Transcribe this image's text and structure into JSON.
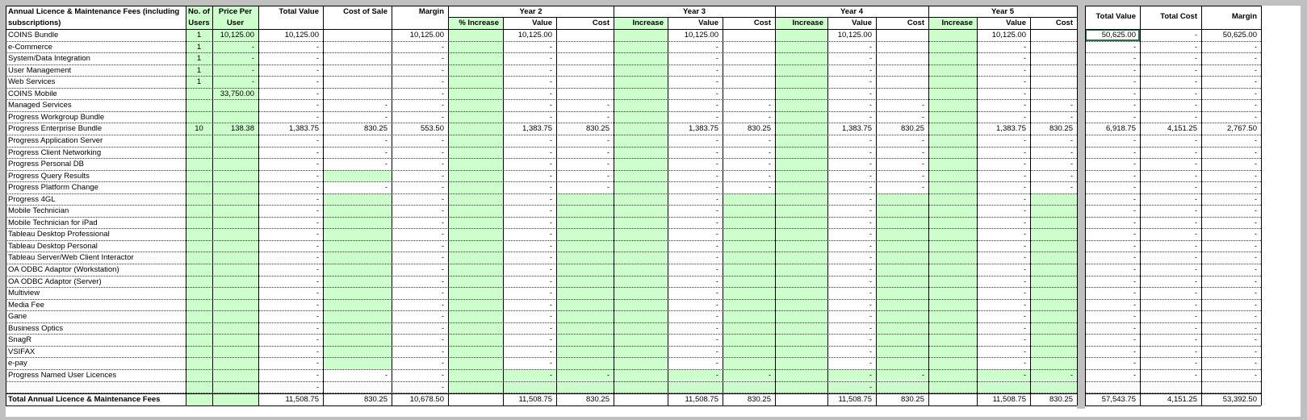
{
  "headers": {
    "title_line1": "Annual Licence & Maintenance Fees (including",
    "title_line2": "subscriptions)",
    "users_line1": "No. of",
    "users_line2": "Users",
    "ppu_line1": "Price Per",
    "ppu_line2": "User",
    "total_value": "Total Value",
    "cost_of_sale": "Cost of Sale",
    "margin": "Margin",
    "year2": "Year 2",
    "year3": "Year 3",
    "year4": "Year 4",
    "year5": "Year 5",
    "pct_increase": "% Increase",
    "increase": "Increase",
    "value": "Value",
    "cost": "Cost",
    "sum_total_value": "Total Value",
    "sum_total_cost": "Total Cost",
    "sum_margin": "Margin"
  },
  "rows": [
    {
      "name": "COINS Bundle",
      "users": "1",
      "ppu": "10,125.00",
      "tv": "10,125.00",
      "cos": "",
      "margin": "10,125.00",
      "y2v": "10,125.00",
      "y2c": "",
      "y3v": "10,125.00",
      "y3c": "",
      "y4v": "10,125.00",
      "y4c": "",
      "y5v": "10,125.00",
      "y5c": "",
      "stv": "50,625.00",
      "stc": "-",
      "sm": "50,625.00"
    },
    {
      "name": "e-Commerce",
      "users": "1",
      "ppu": "-",
      "tv": "-",
      "cos": "",
      "margin": "-",
      "y2v": "-",
      "y2c": "",
      "y3v": "-",
      "y3c": "",
      "y4v": "-",
      "y4c": "",
      "y5v": "-",
      "y5c": "",
      "stv": "-",
      "stc": "-",
      "sm": "-"
    },
    {
      "name": "System/Data Integration",
      "users": "1",
      "ppu": "-",
      "tv": "-",
      "cos": "",
      "margin": "-",
      "y2v": "-",
      "y2c": "",
      "y3v": "-",
      "y3c": "",
      "y4v": "-",
      "y4c": "",
      "y5v": "-",
      "y5c": "",
      "stv": "-",
      "stc": "-",
      "sm": "-"
    },
    {
      "name": "User Management",
      "users": "1",
      "ppu": "-",
      "tv": "-",
      "cos": "",
      "margin": "-",
      "y2v": "-",
      "y2c": "",
      "y3v": "-",
      "y3c": "",
      "y4v": "-",
      "y4c": "",
      "y5v": "-",
      "y5c": "",
      "stv": "-",
      "stc": "-",
      "sm": "-"
    },
    {
      "name": "Web Services",
      "users": "1",
      "ppu": "-",
      "tv": "-",
      "cos": "",
      "margin": "-",
      "y2v": "-",
      "y2c": "",
      "y3v": "-",
      "y3c": "",
      "y4v": "-",
      "y4c": "",
      "y5v": "-",
      "y5c": "",
      "stv": "-",
      "stc": "-",
      "sm": "-"
    },
    {
      "name": "COINS Mobile",
      "users": "",
      "ppu": "33,750.00",
      "tv": "-",
      "cos": "",
      "margin": "-",
      "y2v": "-",
      "y2c": "",
      "y3v": "-",
      "y3c": "",
      "y4v": "-",
      "y4c": "",
      "y5v": "-",
      "y5c": "",
      "stv": "-",
      "stc": "-",
      "sm": "-"
    },
    {
      "name": "Managed Services",
      "users": "",
      "ppu": "",
      "tv": "-",
      "cos": "-",
      "margin": "-",
      "y2v": "-",
      "y2c": "-",
      "y3v": "-",
      "y3c": "-",
      "y4v": "-",
      "y4c": "-",
      "y5v": "-",
      "y5c": "-",
      "stv": "-",
      "stc": "-",
      "sm": "-"
    },
    {
      "name": "Progress Workgroup Bundle",
      "users": "",
      "ppu": "",
      "tv": "-",
      "cos": "-",
      "margin": "-",
      "y2v": "-",
      "y2c": "-",
      "y3v": "-",
      "y3c": "-",
      "y4v": "-",
      "y4c": "-",
      "y5v": "-",
      "y5c": "-",
      "stv": "-",
      "stc": "-",
      "sm": "-"
    },
    {
      "name": "Progress Enterprise Bundle",
      "users": "10",
      "ppu": "138.38",
      "tv": "1,383.75",
      "cos": "830.25",
      "margin": "553.50",
      "y2v": "1,383.75",
      "y2c": "830.25",
      "y3v": "1,383.75",
      "y3c": "830.25",
      "y4v": "1,383.75",
      "y4c": "830.25",
      "y5v": "1,383.75",
      "y5c": "830.25",
      "stv": "6,918.75",
      "stc": "4,151.25",
      "sm": "2,767.50"
    },
    {
      "name": "Progress Application Server",
      "users": "",
      "ppu": "",
      "tv": "-",
      "cos": "-",
      "margin": "-",
      "y2v": "-",
      "y2c": "-",
      "y3v": "-",
      "y3c": "-",
      "y4v": "-",
      "y4c": "-",
      "y5v": "-",
      "y5c": "-",
      "stv": "-",
      "stc": "-",
      "sm": "-"
    },
    {
      "name": "Progress Client Networking",
      "users": "",
      "ppu": "",
      "tv": "-",
      "cos": "-",
      "margin": "-",
      "y2v": "-",
      "y2c": "-",
      "y3v": "-",
      "y3c": "-",
      "y4v": "-",
      "y4c": "-",
      "y5v": "-",
      "y5c": "-",
      "stv": "-",
      "stc": "-",
      "sm": "-"
    },
    {
      "name": "Progress Personal DB",
      "users": "",
      "ppu": "",
      "tv": "-",
      "cos": "-",
      "margin": "-",
      "y2v": "-",
      "y2c": "-",
      "y3v": "-",
      "y3c": "-",
      "y4v": "-",
      "y4c": "-",
      "y5v": "-",
      "y5c": "-",
      "stv": "-",
      "stc": "-",
      "sm": "-"
    },
    {
      "name": "Progress Query Results",
      "users": "",
      "ppu": "",
      "tv": "-",
      "cos": "",
      "margin": "-",
      "y2v": "-",
      "y2c": "-",
      "y3v": "-",
      "y3c": "-",
      "y4v": "-",
      "y4c": "-",
      "y5v": "-",
      "y5c": "-",
      "stv": "-",
      "stc": "-",
      "sm": "-"
    },
    {
      "name": "Progress Platform Change",
      "users": "",
      "ppu": "",
      "tv": "-",
      "cos": "-",
      "margin": "-",
      "y2v": "-",
      "y2c": "-",
      "y3v": "-",
      "y3c": "-",
      "y4v": "-",
      "y4c": "-",
      "y5v": "-",
      "y5c": "-",
      "stv": "-",
      "stc": "-",
      "sm": "-"
    },
    {
      "name": "Progress 4GL",
      "users": "",
      "ppu": "",
      "tv": "-",
      "cos": "",
      "margin": "-",
      "y2v": "-",
      "y2c": "",
      "y3v": "-",
      "y3c": "",
      "y4v": "-",
      "y4c": "",
      "y5v": "-",
      "y5c": "",
      "stv": "-",
      "stc": "-",
      "sm": "-"
    },
    {
      "name": "Mobile Technician",
      "users": "",
      "ppu": "",
      "tv": "-",
      "cos": "",
      "margin": "-",
      "y2v": "-",
      "y2c": "",
      "y3v": "-",
      "y3c": "",
      "y4v": "-",
      "y4c": "",
      "y5v": "-",
      "y5c": "",
      "stv": "-",
      "stc": "-",
      "sm": "-"
    },
    {
      "name": "Mobile Technician for iPad",
      "users": "",
      "ppu": "",
      "tv": "-",
      "cos": "",
      "margin": "-",
      "y2v": "-",
      "y2c": "",
      "y3v": "-",
      "y3c": "",
      "y4v": "-",
      "y4c": "",
      "y5v": "-",
      "y5c": "",
      "stv": "-",
      "stc": "-",
      "sm": "-"
    },
    {
      "name": "Tableau Desktop Professional",
      "users": "",
      "ppu": "",
      "tv": "-",
      "cos": "",
      "margin": "-",
      "y2v": "-",
      "y2c": "",
      "y3v": "-",
      "y3c": "",
      "y4v": "-",
      "y4c": "",
      "y5v": "-",
      "y5c": "",
      "stv": "-",
      "stc": "-",
      "sm": "-"
    },
    {
      "name": "Tableau Desktop Personal",
      "users": "",
      "ppu": "",
      "tv": "-",
      "cos": "",
      "margin": "-",
      "y2v": "-",
      "y2c": "",
      "y3v": "-",
      "y3c": "",
      "y4v": "-",
      "y4c": "",
      "y5v": "-",
      "y5c": "",
      "stv": "-",
      "stc": "-",
      "sm": "-"
    },
    {
      "name": "Tableau Server/Web Client Interactor",
      "users": "",
      "ppu": "",
      "tv": "-",
      "cos": "",
      "margin": "-",
      "y2v": "-",
      "y2c": "",
      "y3v": "-",
      "y3c": "",
      "y4v": "-",
      "y4c": "",
      "y5v": "-",
      "y5c": "",
      "stv": "-",
      "stc": "-",
      "sm": "-"
    },
    {
      "name": "OA ODBC Adaptor (Workstation)",
      "users": "",
      "ppu": "",
      "tv": "-",
      "cos": "",
      "margin": "-",
      "y2v": "-",
      "y2c": "",
      "y3v": "-",
      "y3c": "",
      "y4v": "-",
      "y4c": "",
      "y5v": "-",
      "y5c": "",
      "stv": "-",
      "stc": "-",
      "sm": "-"
    },
    {
      "name": "OA ODBC Adaptor (Server)",
      "users": "",
      "ppu": "",
      "tv": "-",
      "cos": "",
      "margin": "-",
      "y2v": "-",
      "y2c": "",
      "y3v": "-",
      "y3c": "",
      "y4v": "-",
      "y4c": "",
      "y5v": "-",
      "y5c": "",
      "stv": "-",
      "stc": "-",
      "sm": "-"
    },
    {
      "name": "Multiview",
      "users": "",
      "ppu": "",
      "tv": "-",
      "cos": "",
      "margin": "-",
      "y2v": "-",
      "y2c": "",
      "y3v": "-",
      "y3c": "",
      "y4v": "-",
      "y4c": "",
      "y5v": "-",
      "y5c": "",
      "stv": "-",
      "stc": "-",
      "sm": "-"
    },
    {
      "name": "Media Fee",
      "users": "",
      "ppu": "",
      "tv": "-",
      "cos": "",
      "margin": "-",
      "y2v": "-",
      "y2c": "",
      "y3v": "-",
      "y3c": "",
      "y4v": "-",
      "y4c": "",
      "y5v": "-",
      "y5c": "",
      "stv": "-",
      "stc": "-",
      "sm": "-"
    },
    {
      "name": "Gane",
      "users": "",
      "ppu": "",
      "tv": "-",
      "cos": "",
      "margin": "-",
      "y2v": "-",
      "y2c": "",
      "y3v": "-",
      "y3c": "",
      "y4v": "-",
      "y4c": "",
      "y5v": "-",
      "y5c": "",
      "stv": "-",
      "stc": "-",
      "sm": "-"
    },
    {
      "name": "Business Optics",
      "users": "",
      "ppu": "",
      "tv": "-",
      "cos": "",
      "margin": "-",
      "y2v": "-",
      "y2c": "",
      "y3v": "-",
      "y3c": "",
      "y4v": "-",
      "y4c": "",
      "y5v": "-",
      "y5c": "",
      "stv": "-",
      "stc": "-",
      "sm": "-"
    },
    {
      "name": "SnagR",
      "users": "",
      "ppu": "",
      "tv": "-",
      "cos": "",
      "margin": "-",
      "y2v": "-",
      "y2c": "",
      "y3v": "-",
      "y3c": "",
      "y4v": "-",
      "y4c": "",
      "y5v": "-",
      "y5c": "",
      "stv": "-",
      "stc": "-",
      "sm": "-"
    },
    {
      "name": "VSIFAX",
      "users": "",
      "ppu": "",
      "tv": "-",
      "cos": "",
      "margin": "-",
      "y2v": "-",
      "y2c": "",
      "y3v": "-",
      "y3c": "",
      "y4v": "-",
      "y4c": "",
      "y5v": "-",
      "y5c": "",
      "stv": "-",
      "stc": "-",
      "sm": "-"
    },
    {
      "name": "e-pay",
      "users": "",
      "ppu": "",
      "tv": "-",
      "cos": "",
      "margin": "-",
      "y2v": "-",
      "y2c": "",
      "y3v": "-",
      "y3c": "",
      "y4v": "-",
      "y4c": "",
      "y5v": "-",
      "y5c": "",
      "stv": "-",
      "stc": "-",
      "sm": "-"
    },
    {
      "name": "Progress Named User Licences",
      "users": "",
      "ppu": "",
      "tv": "-",
      "cos": "-",
      "margin": "-",
      "y2v": "-",
      "y2c": "-",
      "y3v": "-",
      "y3c": "-",
      "y4v": "-",
      "y4c": "-",
      "y5v": "-",
      "y5c": "-",
      "stv": "-",
      "stc": "-",
      "sm": "-"
    },
    {
      "name": "",
      "users": "",
      "ppu": "",
      "tv": "-",
      "cos": "",
      "margin": "-",
      "y2v": "",
      "y2c": "",
      "y3v": "",
      "y3c": "",
      "y4v": "-",
      "y4c": "",
      "y5v": "",
      "y5c": "",
      "stv": "",
      "stc": "",
      "sm": ""
    }
  ],
  "total": {
    "name": "Total Annual Licence & Maintenance Fees",
    "tv": "11,508.75",
    "cos": "830.25",
    "margin": "10,678.50",
    "y2v": "11,508.75",
    "y2c": "830.25",
    "y3v": "11,508.75",
    "y3c": "830.25",
    "y4v": "11,508.75",
    "y4c": "830.25",
    "y5v": "11,508.75",
    "y5c": "830.25",
    "stv": "57,543.75",
    "stc": "4,151.25",
    "sm": "53,392.50"
  },
  "colors": {
    "input_green": "#ccffcc",
    "selection": "#217346",
    "frame": "#c0c0c0"
  }
}
